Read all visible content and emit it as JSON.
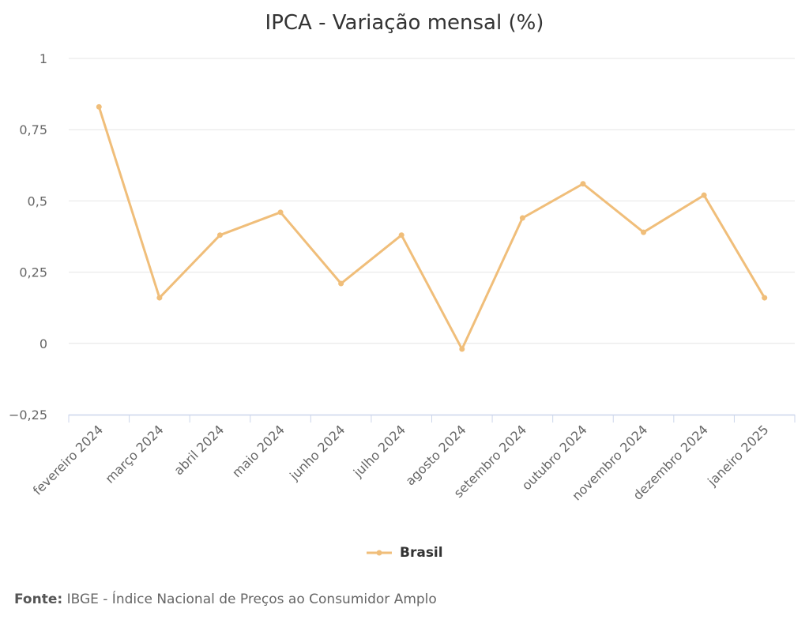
{
  "chart_data": {
    "type": "line",
    "title": "IPCA - Variação mensal (%)",
    "xlabel": "",
    "ylabel": "",
    "categories": [
      "fevereiro 2024",
      "março 2024",
      "abril 2024",
      "maio 2024",
      "junho 2024",
      "julho 2024",
      "agosto 2024",
      "setembro 2024",
      "outubro 2024",
      "novembro 2024",
      "dezembro 2024",
      "janeiro 2025"
    ],
    "series": [
      {
        "name": "Brasil",
        "color": "#F0BE7A",
        "values": [
          0.83,
          0.16,
          0.38,
          0.46,
          0.21,
          0.38,
          -0.02,
          0.44,
          0.56,
          0.39,
          0.52,
          0.16
        ]
      }
    ],
    "ylim": [
      -0.25,
      1
    ],
    "yticks": [
      -0.25,
      0,
      0.25,
      0.5,
      0.75,
      1
    ],
    "ytick_labels": [
      "−0,25",
      "0",
      "0,25",
      "0,5",
      "0,75",
      "1"
    ],
    "grid": true,
    "legend": "bottom-center"
  },
  "source": {
    "label": "Fonte:",
    "text": "IBGE - Índice Nacional de Preços ao Consumidor Amplo"
  }
}
